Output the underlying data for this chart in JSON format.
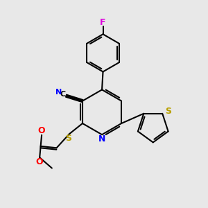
{
  "bg_color": "#e8e8e8",
  "bond_color": "#000000",
  "atom_colors": {
    "N": "#0000ff",
    "O": "#ff0000",
    "S": "#b8a000",
    "F": "#dd00dd",
    "C_label": "#000000",
    "CN_C": "#000000",
    "CN_N": "#0000ff"
  },
  "lw": 1.5
}
